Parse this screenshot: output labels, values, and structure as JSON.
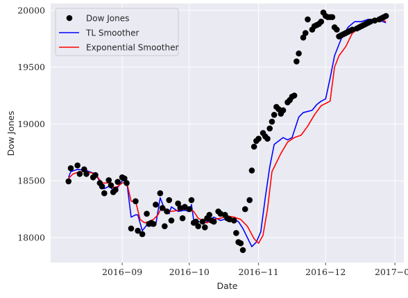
{
  "chart_data": {
    "type": "line",
    "xlabel": "Date",
    "ylabel": "Dow Jones",
    "x_tick_labels": [
      "2016−09",
      "2016−10",
      "2016−11",
      "2016−12",
      "2017−01"
    ],
    "x_ticks": [
      "2016-09-01",
      "2016-10-01",
      "2016-11-01",
      "2016-12-01",
      "2017-01-01"
    ],
    "xlim": [
      "2016-07-31",
      "2017-01-05"
    ],
    "y_ticks": [
      18000,
      18500,
      19000,
      19500,
      20000
    ],
    "ylim": [
      17780,
      20060
    ],
    "grid": true,
    "legend_position": "top-left",
    "colors": {
      "background": "#eaeaf2",
      "grid": "#ffffff",
      "points": "#000000",
      "tl": "#0000ff",
      "exp": "#ff0000"
    },
    "series": [
      {
        "name": "Dow Jones",
        "style": "markers",
        "x": [
          "2016-08-08",
          "2016-08-09",
          "2016-08-12",
          "2016-08-13",
          "2016-08-15",
          "2016-08-16",
          "2016-08-19",
          "2016-08-20",
          "2016-08-22",
          "2016-08-23",
          "2016-08-24",
          "2016-08-26",
          "2016-08-27",
          "2016-08-28",
          "2016-08-29",
          "2016-08-30",
          "2016-09-01",
          "2016-09-02",
          "2016-09-03",
          "2016-09-05",
          "2016-09-07",
          "2016-09-08",
          "2016-09-10",
          "2016-09-12",
          "2016-09-13",
          "2016-09-14",
          "2016-09-15",
          "2016-09-16",
          "2016-09-18",
          "2016-09-19",
          "2016-09-20",
          "2016-09-21",
          "2016-09-22",
          "2016-09-23",
          "2016-09-26",
          "2016-09-27",
          "2016-09-28",
          "2016-09-29",
          "2016-10-01",
          "2016-10-02",
          "2016-10-03",
          "2016-10-04",
          "2016-10-05",
          "2016-10-07",
          "2016-10-08",
          "2016-10-09",
          "2016-10-10",
          "2016-10-11",
          "2016-10-12",
          "2016-10-14",
          "2016-10-15",
          "2016-10-17",
          "2016-10-18",
          "2016-10-19",
          "2016-10-21",
          "2016-10-22",
          "2016-10-23",
          "2016-10-24",
          "2016-10-25",
          "2016-10-26",
          "2016-10-28",
          "2016-10-29",
          "2016-10-30",
          "2016-10-31",
          "2016-11-01",
          "2016-11-03",
          "2016-11-04",
          "2016-11-05",
          "2016-11-06",
          "2016-11-07",
          "2016-11-08",
          "2016-11-09",
          "2016-11-10",
          "2016-11-11",
          "2016-11-12",
          "2016-11-14",
          "2016-11-15",
          "2016-11-16",
          "2016-11-17",
          "2016-11-18",
          "2016-11-19",
          "2016-11-21",
          "2016-11-22",
          "2016-11-23",
          "2016-11-25",
          "2016-11-26",
          "2016-11-27",
          "2016-11-28",
          "2016-11-29",
          "2016-11-30",
          "2016-12-01",
          "2016-12-02",
          "2016-12-03",
          "2016-12-04",
          "2016-12-05",
          "2016-12-06",
          "2016-12-07",
          "2016-12-08",
          "2016-12-09",
          "2016-12-10",
          "2016-12-11",
          "2016-12-12",
          "2016-12-13",
          "2016-12-15",
          "2016-12-16",
          "2016-12-17",
          "2016-12-18",
          "2016-12-19",
          "2016-12-20",
          "2016-12-21",
          "2016-12-23",
          "2016-12-25",
          "2016-12-26",
          "2016-12-27",
          "2016-12-28"
        ],
        "y": [
          18495,
          18610,
          18635,
          18560,
          18600,
          18560,
          18530,
          18550,
          18480,
          18450,
          18390,
          18505,
          18460,
          18400,
          18420,
          18490,
          18530,
          18520,
          18480,
          18080,
          18320,
          18060,
          18030,
          18210,
          18120,
          18130,
          18120,
          18290,
          18390,
          18260,
          18100,
          18230,
          18330,
          18150,
          18300,
          18260,
          18170,
          18270,
          18250,
          18330,
          18130,
          18140,
          18100,
          18140,
          18090,
          18170,
          18200,
          18150,
          18140,
          18230,
          18210,
          18200,
          18170,
          18160,
          18150,
          18040,
          17960,
          17950,
          17890,
          18250,
          18330,
          18590,
          18800,
          18850,
          18870,
          18920,
          18890,
          18870,
          18960,
          19020,
          19080,
          19150,
          19130,
          19090,
          19120,
          19190,
          19210,
          19240,
          19250,
          19550,
          19620,
          19760,
          19800,
          19920,
          19830,
          19860,
          19870,
          19880,
          19900,
          19980,
          19950,
          19940,
          19940,
          19940,
          19850,
          19830,
          19770,
          19780,
          19790,
          19800,
          19810,
          19820,
          19830,
          19840,
          19850,
          19860,
          19870,
          19880,
          19890,
          19900,
          19910,
          19920,
          19930,
          19940,
          19950
        ]
      },
      {
        "name": "TL Smoother",
        "style": "line",
        "x": [
          "2016-08-08",
          "2016-08-09",
          "2016-08-12",
          "2016-08-16",
          "2016-08-20",
          "2016-08-24",
          "2016-08-26",
          "2016-08-28",
          "2016-08-30",
          "2016-09-01",
          "2016-09-03",
          "2016-09-05",
          "2016-09-07",
          "2016-09-08",
          "2016-09-10",
          "2016-09-12",
          "2016-09-15",
          "2016-09-16",
          "2016-09-18",
          "2016-09-19",
          "2016-09-20",
          "2016-09-22",
          "2016-09-23",
          "2016-09-26",
          "2016-09-29",
          "2016-10-01",
          "2016-10-02",
          "2016-10-03",
          "2016-10-05",
          "2016-10-08",
          "2016-10-10",
          "2016-10-12",
          "2016-10-15",
          "2016-10-18",
          "2016-10-21",
          "2016-10-23",
          "2016-10-25",
          "2016-10-27",
          "2016-10-29",
          "2016-10-31",
          "2016-11-02",
          "2016-11-04",
          "2016-11-06",
          "2016-11-08",
          "2016-11-10",
          "2016-11-12",
          "2016-11-14",
          "2016-11-16",
          "2016-11-18",
          "2016-11-19",
          "2016-11-21",
          "2016-11-23",
          "2016-11-25",
          "2016-11-27",
          "2016-11-29",
          "2016-12-01",
          "2016-12-03",
          "2016-12-05",
          "2016-12-08",
          "2016-12-11",
          "2016-12-14",
          "2016-12-17",
          "2016-12-20",
          "2016-12-24",
          "2016-12-28"
        ],
        "y": [
          18530,
          18580,
          18600,
          18590,
          18560,
          18430,
          18450,
          18420,
          18440,
          18500,
          18500,
          18180,
          18200,
          18200,
          18060,
          18110,
          18100,
          18110,
          18350,
          18300,
          18240,
          18210,
          18270,
          18230,
          18240,
          18230,
          18290,
          18150,
          18140,
          18130,
          18150,
          18180,
          18150,
          18170,
          18160,
          18140,
          18080,
          18000,
          17920,
          17960,
          18050,
          18350,
          18620,
          18820,
          18850,
          18880,
          18860,
          18880,
          19000,
          19060,
          19100,
          19110,
          19120,
          19170,
          19200,
          19220,
          19400,
          19600,
          19750,
          19850,
          19900,
          19900,
          19920,
          19920,
          19890
        ]
      },
      {
        "name": "Exponential Smoother",
        "style": "line",
        "x": [
          "2016-08-08",
          "2016-08-10",
          "2016-08-13",
          "2016-08-16",
          "2016-08-20",
          "2016-08-23",
          "2016-08-26",
          "2016-08-28",
          "2016-08-30",
          "2016-09-01",
          "2016-09-03",
          "2016-09-05",
          "2016-09-07",
          "2016-09-09",
          "2016-09-11",
          "2016-09-13",
          "2016-09-15",
          "2016-09-17",
          "2016-09-19",
          "2016-09-21",
          "2016-09-23",
          "2016-09-26",
          "2016-09-29",
          "2016-10-01",
          "2016-10-03",
          "2016-10-05",
          "2016-10-07",
          "2016-10-09",
          "2016-10-12",
          "2016-10-15",
          "2016-10-18",
          "2016-10-21",
          "2016-10-24",
          "2016-10-27",
          "2016-10-30",
          "2016-11-01",
          "2016-11-03",
          "2016-11-05",
          "2016-11-07",
          "2016-11-09",
          "2016-11-11",
          "2016-11-14",
          "2016-11-17",
          "2016-11-20",
          "2016-11-23",
          "2016-11-26",
          "2016-11-29",
          "2016-12-01",
          "2016-12-03",
          "2016-12-05",
          "2016-12-07",
          "2016-12-10",
          "2016-12-13",
          "2016-12-16",
          "2016-12-19",
          "2016-12-22",
          "2016-12-25",
          "2016-12-28"
        ],
        "y": [
          18520,
          18560,
          18580,
          18580,
          18560,
          18480,
          18480,
          18440,
          18450,
          18480,
          18490,
          18320,
          18320,
          18160,
          18130,
          18140,
          18160,
          18200,
          18280,
          18240,
          18230,
          18240,
          18250,
          18250,
          18230,
          18170,
          18150,
          18130,
          18160,
          18170,
          18190,
          18180,
          18160,
          18100,
          17990,
          17950,
          18020,
          18250,
          18580,
          18660,
          18740,
          18840,
          18880,
          18900,
          18980,
          19080,
          19160,
          19180,
          19200,
          19500,
          19600,
          19680,
          19800,
          19840,
          19880,
          19920,
          19930,
          19900
        ]
      }
    ]
  }
}
